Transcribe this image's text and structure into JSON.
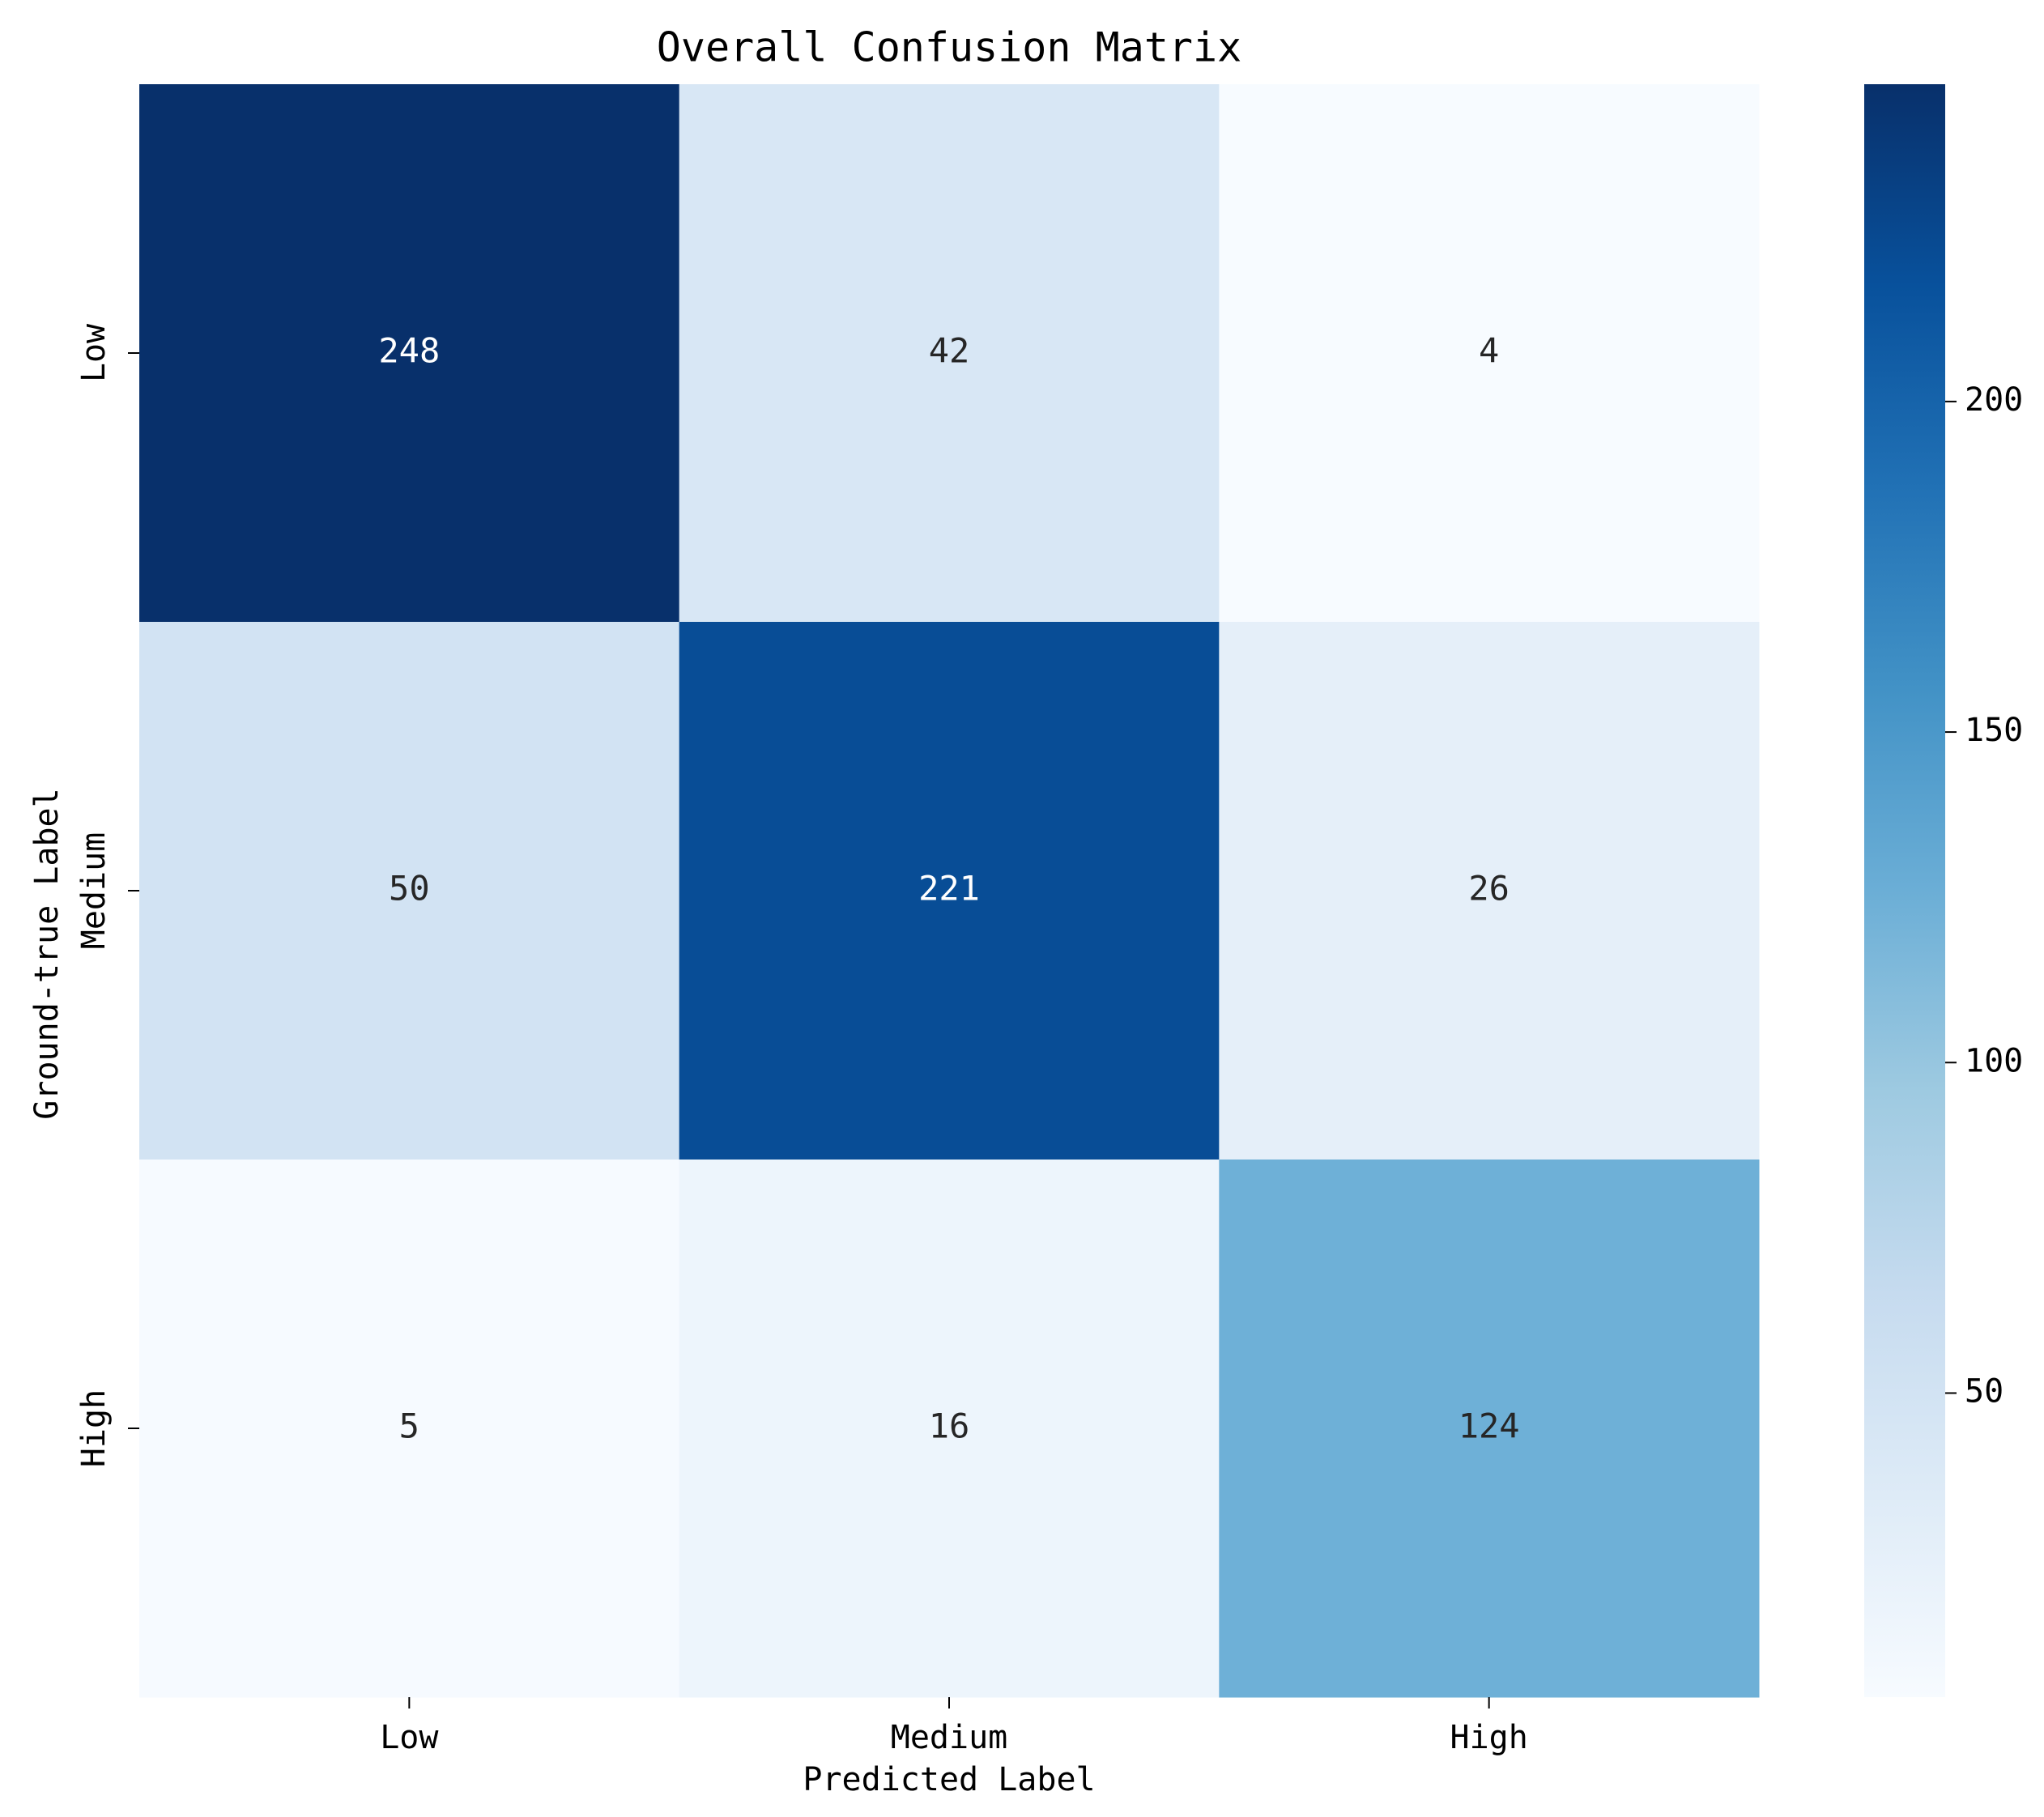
{
  "chart_data": {
    "type": "heatmap",
    "title": "Overall Confusion Matrix",
    "xlabel": "Predicted Label",
    "ylabel": "Ground-true Label",
    "x_categories": [
      "Low",
      "Medium",
      "High"
    ],
    "y_categories": [
      "Low",
      "Medium",
      "High"
    ],
    "values": [
      [
        248,
        42,
        4
      ],
      [
        50,
        221,
        26
      ],
      [
        5,
        16,
        124
      ]
    ],
    "colormap": "Blues",
    "colorbar": {
      "range": [
        4,
        248
      ],
      "ticks": [
        50,
        100,
        150,
        200
      ]
    },
    "grid": false,
    "legend": "colorbar-right"
  }
}
